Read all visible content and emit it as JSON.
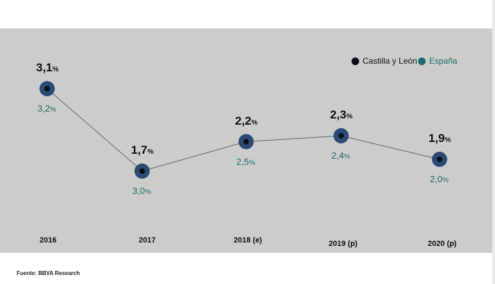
{
  "chart_data": {
    "type": "line",
    "categories": [
      "2016",
      "2017",
      "2018 (e)",
      "2019 (p)",
      "2020 (p)"
    ],
    "series": [
      {
        "name": "Castilla y León",
        "values": [
          3.1,
          1.7,
          2.2,
          2.3,
          1.9
        ],
        "labels": [
          "3,1",
          "1,7",
          "2,2",
          "2,3",
          "1,9"
        ]
      },
      {
        "name": "España",
        "values": [
          3.2,
          3.0,
          2.5,
          2.4,
          2.0
        ],
        "labels": [
          "3,2",
          "3,0",
          "2,5",
          "2,4",
          "2,0"
        ]
      }
    ],
    "unit": "%",
    "legend_position": "top-right",
    "grid": false
  },
  "legend": {
    "series1": "Castilla y León",
    "series2": "España"
  },
  "source": "Fuente: BBVA Research",
  "colors": {
    "background_panel": "#cccccc",
    "marker_ring": "#2c4a75",
    "marker_center": "#0b0f1a",
    "line": "#666666",
    "castilla_label": "#111111",
    "espana_label": "#1f6b6b"
  }
}
